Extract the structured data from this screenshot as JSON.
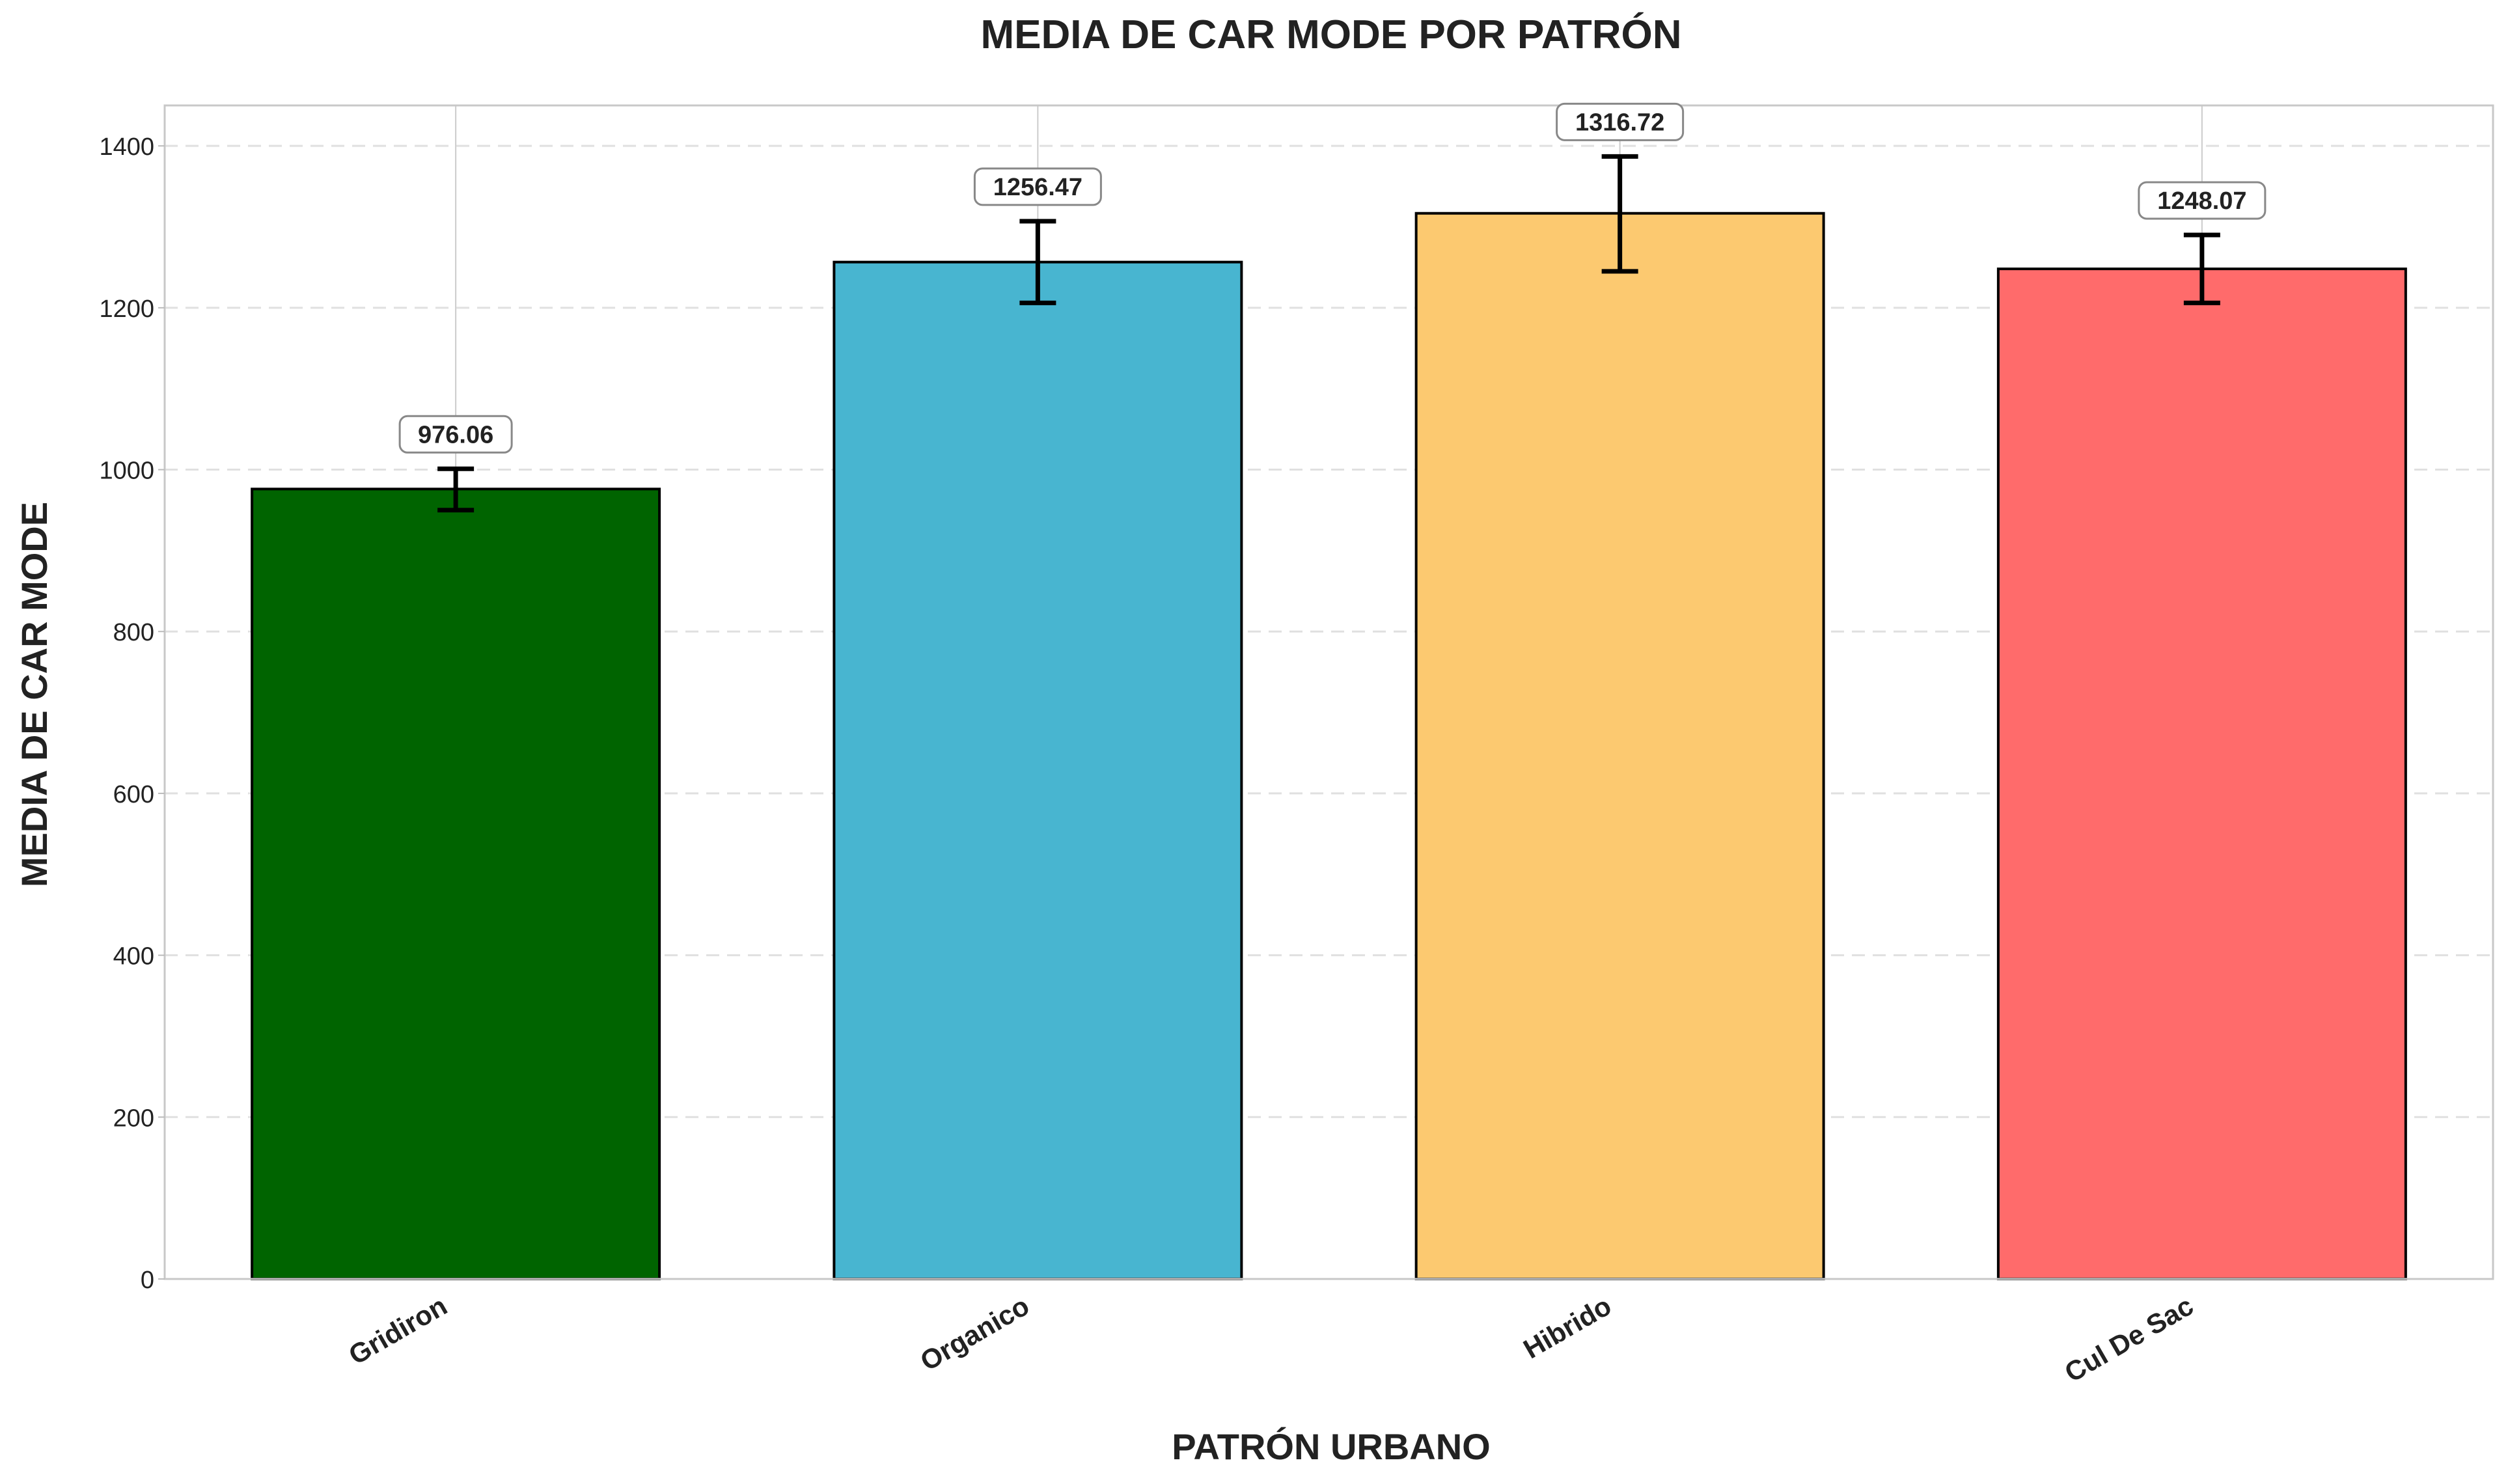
{
  "chart_data": {
    "type": "bar",
    "title": "MEDIA DE CAR MODE POR PATRÓN",
    "xlabel": "PATRÓN URBANO",
    "ylabel": "MEDIA DE CAR MODE",
    "categories": [
      "Gridiron",
      "Organico",
      "Hibrido",
      "Cul De Sac"
    ],
    "values": [
      976.06,
      1256.47,
      1316.72,
      1248.07
    ],
    "value_labels": [
      "976.06",
      "1256.47",
      "1316.72",
      "1248.07"
    ],
    "error_bars": [
      {
        "low": 950,
        "high": 1001
      },
      {
        "low": 1206,
        "high": 1307
      },
      {
        "low": 1245,
        "high": 1387
      },
      {
        "low": 1206,
        "high": 1290
      }
    ],
    "colors": [
      "#006400",
      "#48B5D0",
      "#FCC970",
      "#FF6B6B"
    ],
    "ylim": [
      0,
      1450
    ],
    "yticks": [
      0,
      200,
      400,
      600,
      800,
      1000,
      1200,
      1400
    ],
    "ytick_labels": [
      "0",
      "200",
      "400",
      "600",
      "800",
      "1000",
      "1200",
      "1400"
    ],
    "grid": true,
    "legend": "none"
  }
}
